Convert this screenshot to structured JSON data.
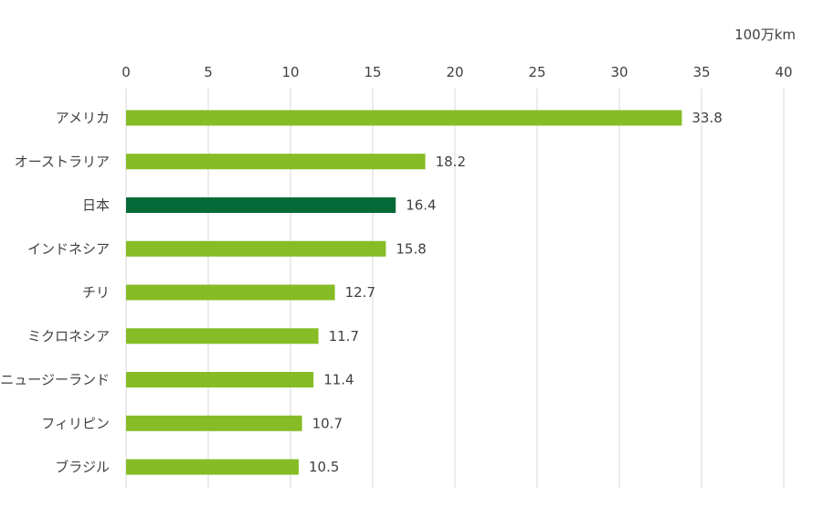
{
  "chart_data": {
    "type": "bar",
    "orientation": "horizontal",
    "unit_label": "100万km",
    "xlim": [
      0,
      40
    ],
    "ticks": [
      0,
      5,
      10,
      15,
      20,
      25,
      30,
      35,
      40
    ],
    "categories": [
      "アメリカ",
      "オーストラリア",
      "日本",
      "インドネシア",
      "チリ",
      "ミクロネシア",
      "ニュージーランド",
      "フィリピン",
      "ブラジル"
    ],
    "values": [
      33.8,
      18.2,
      16.4,
      15.8,
      12.7,
      11.7,
      11.4,
      10.7,
      10.5
    ],
    "value_labels": [
      "33.8",
      "18.2",
      "16.4",
      "15.8",
      "12.7",
      "11.7",
      "11.4",
      "10.7",
      "10.5"
    ],
    "highlight": "日本",
    "legend": "none",
    "grid": true,
    "colors": {
      "bar": "#86bc25",
      "highlight": "#046a38",
      "grid": "#d9d9d9",
      "text": "#404040"
    }
  }
}
